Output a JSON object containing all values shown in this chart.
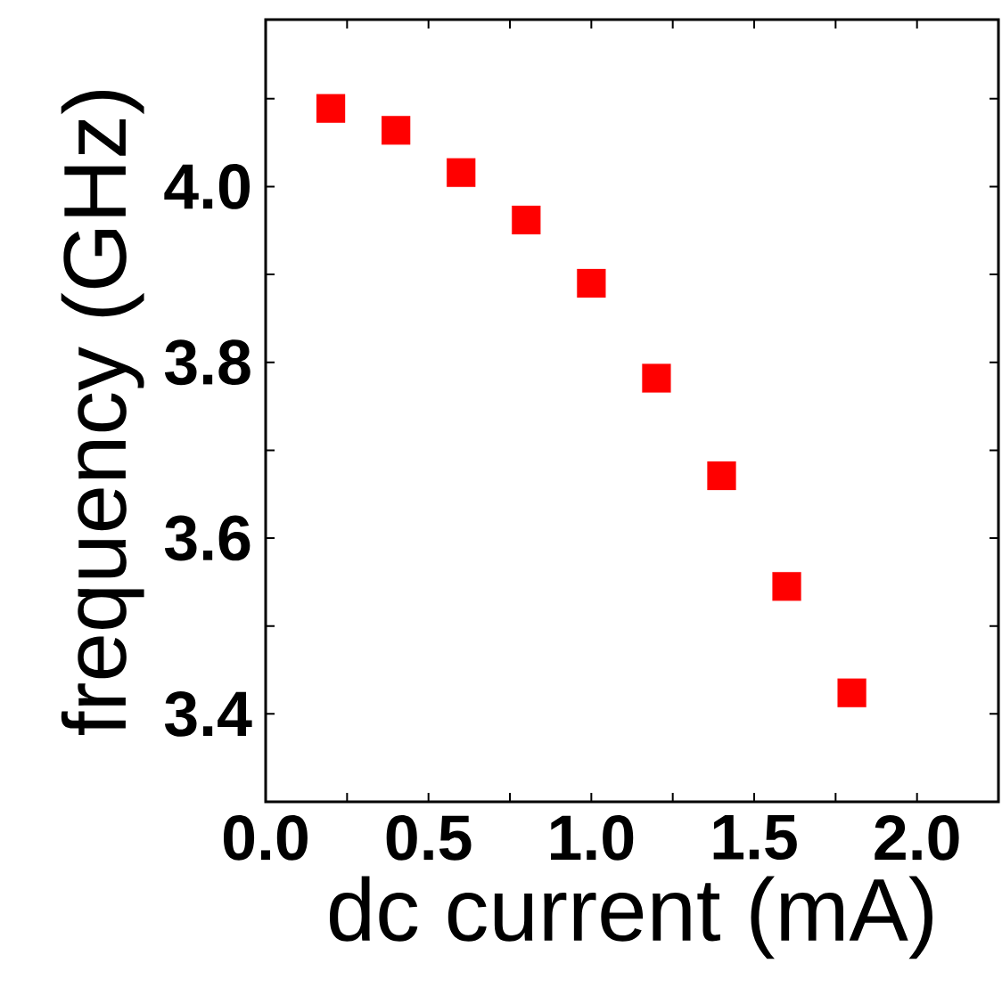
{
  "chart_data": {
    "type": "scatter",
    "xlabel": "dc current (mA)",
    "ylabel": "frequency (GHz)",
    "x": [
      0.2,
      0.4,
      0.6,
      0.8,
      1.0,
      1.2,
      1.4,
      1.6,
      1.8
    ],
    "series": [
      {
        "color": "#ff0000",
        "values": [
          4.089,
          4.064,
          4.016,
          3.962,
          3.89,
          3.782,
          3.671,
          3.545,
          3.424
        ]
      }
    ],
    "marker": "square",
    "xlim": [
      0,
      2.25
    ],
    "ylim": [
      3.3,
      4.19
    ],
    "xticks": [
      {
        "value": 0,
        "label": "0.0"
      },
      {
        "value": 0.25,
        "label": null
      },
      0.5,
      {
        "value": 0.75,
        "label": null
      },
      {
        "value": 1,
        "label": "1.0"
      },
      {
        "value": 1.25,
        "label": null
      },
      1.5,
      {
        "value": 1.75,
        "label": null
      },
      {
        "value": 2,
        "label": "2.0"
      }
    ],
    "yticks": [
      {
        "value": 3.3,
        "label": null
      },
      3.4,
      {
        "value": 3.5,
        "label": null
      },
      3.6,
      {
        "value": 3.7,
        "label": null
      },
      3.8,
      {
        "value": 3.9,
        "label": null
      },
      {
        "value": 4,
        "label": "4.0"
      },
      {
        "value": 4.1,
        "label": null
      }
    ],
    "grid": false
  }
}
